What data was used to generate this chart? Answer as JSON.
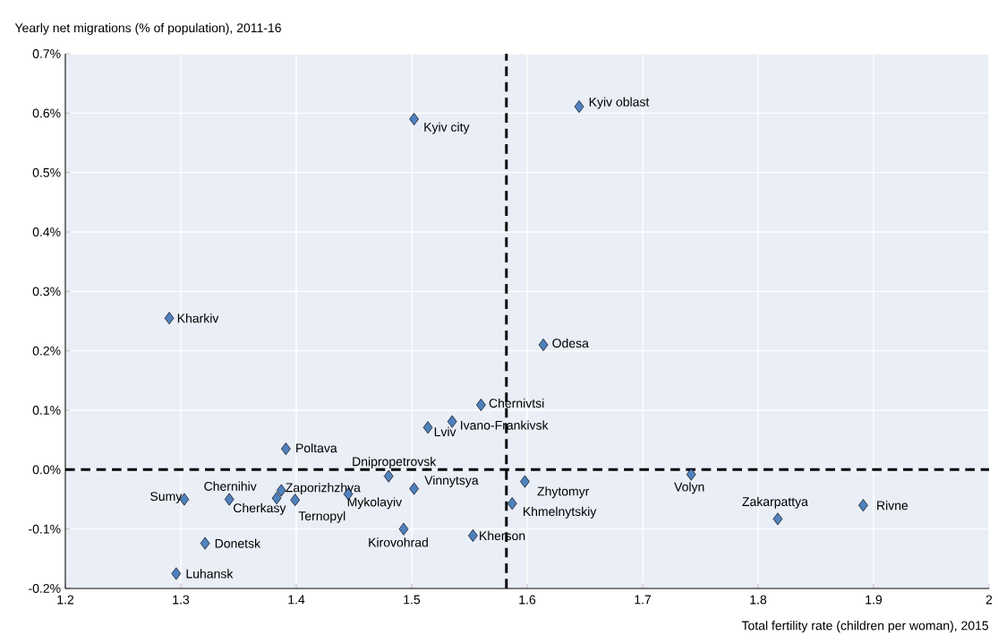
{
  "chart_data": {
    "type": "scatter",
    "xlabel": "Total fertility rate (children per woman), 2015",
    "ylabel": "Yearly net migrations (% of population), 2011-16",
    "x": [
      1.29,
      1.502,
      1.645,
      1.614,
      1.56,
      1.535,
      1.514,
      1.391,
      1.48,
      1.303,
      1.342,
      1.387,
      1.383,
      1.399,
      1.445,
      1.502,
      1.493,
      1.553,
      1.321,
      1.296,
      1.598,
      1.587,
      1.742,
      1.817,
      1.891
    ],
    "values": [
      0.255,
      0.59,
      0.611,
      0.21,
      0.109,
      0.081,
      0.071,
      0.035,
      -0.011,
      -0.05,
      -0.05,
      -0.035,
      -0.048,
      -0.051,
      -0.041,
      -0.032,
      -0.1,
      -0.111,
      -0.124,
      -0.175,
      -0.02,
      -0.057,
      -0.008,
      -0.083,
      -0.06
    ],
    "color": "#4f81bd",
    "marker": "diamond",
    "grid": true,
    "xlim": [
      1.2,
      2
    ],
    "xticks": [
      {
        "value": 1.2,
        "label": "1.2"
      },
      {
        "value": 1.3,
        "label": "1.3"
      },
      {
        "value": 1.4,
        "label": "1.4"
      },
      {
        "value": 1.5,
        "label": "1.5"
      },
      {
        "value": 1.6,
        "label": "1.6"
      },
      {
        "value": 1.7,
        "label": "1.7"
      },
      {
        "value": 1.8,
        "label": "1.8"
      },
      {
        "value": 1.9,
        "label": "1.9"
      },
      2
    ],
    "ylim": [
      -0.2,
      0.7
    ],
    "yticks": [
      {
        "value": -0.2,
        "label": "-0.2%"
      },
      {
        "value": -0.1,
        "label": "-0.1%"
      },
      {
        "value": 0,
        "label": "0.0%"
      },
      {
        "value": 0.1,
        "label": "0.1%"
      },
      {
        "value": 0.2,
        "label": "0.2%"
      },
      {
        "value": 0.3,
        "label": "0.3%"
      },
      {
        "value": 0.4,
        "label": "0.4%"
      },
      {
        "value": 0.5,
        "label": "0.5%"
      },
      {
        "value": 0.6,
        "label": "0.6%"
      },
      {
        "value": 0.7,
        "label": "0.7%"
      }
    ],
    "ref_lines": [
      {
        "axis": "x",
        "value": 1.582,
        "color": "#000000",
        "line_style": "dashed"
      },
      {
        "axis": "y",
        "value": 0,
        "color": "#000000",
        "line_style": "dashed"
      }
    ],
    "annotations": [
      {
        "text": "Kharkiv",
        "x": 1.29,
        "y": 0.255
      },
      {
        "text": "Kyiv city",
        "x": 1.502,
        "y": 0.59
      },
      {
        "text": "Kyiv oblast",
        "x": 1.645,
        "y": 0.611
      },
      {
        "text": "Odesa",
        "x": 1.614,
        "y": 0.21
      },
      {
        "text": "Chernivtsi",
        "x": 1.56,
        "y": 0.109
      },
      {
        "text": "Ivano-Frankivsk",
        "x": 1.535,
        "y": 0.081
      },
      {
        "text": "Lviv",
        "x": 1.514,
        "y": 0.071
      },
      {
        "text": "Poltava",
        "x": 1.391,
        "y": 0.035
      },
      {
        "text": "Dnipropetrovsk",
        "x": 1.48,
        "y": -0.011
      },
      {
        "text": "Sumy",
        "x": 1.303,
        "y": -0.05
      },
      {
        "text": "Chernihiv",
        "x": 1.342,
        "y": -0.05
      },
      {
        "text": "Zaporizhzhya",
        "x": 1.387,
        "y": -0.035
      },
      {
        "text": "Cherkasy",
        "x": 1.383,
        "y": -0.048
      },
      {
        "text": "Ternopyl",
        "x": 1.399,
        "y": -0.051
      },
      {
        "text": "Mykolayiv",
        "x": 1.445,
        "y": -0.041
      },
      {
        "text": "Vinnytsya",
        "x": 1.502,
        "y": -0.032
      },
      {
        "text": "Kirovohrad",
        "x": 1.493,
        "y": -0.1
      },
      {
        "text": "Kherson",
        "x": 1.553,
        "y": -0.111
      },
      {
        "text": "Donetsk",
        "x": 1.321,
        "y": -0.124
      },
      {
        "text": "Luhansk",
        "x": 1.296,
        "y": -0.175
      },
      {
        "text": "Zhytomyr",
        "x": 1.598,
        "y": -0.02
      },
      {
        "text": "Khmelnytskiy",
        "x": 1.587,
        "y": -0.057
      },
      {
        "text": "Volyn",
        "x": 1.742,
        "y": -0.008
      },
      {
        "text": "Zakarpattya",
        "x": 1.817,
        "y": -0.083
      },
      {
        "text": "Rivne",
        "x": 1.891,
        "y": -0.06
      }
    ]
  }
}
